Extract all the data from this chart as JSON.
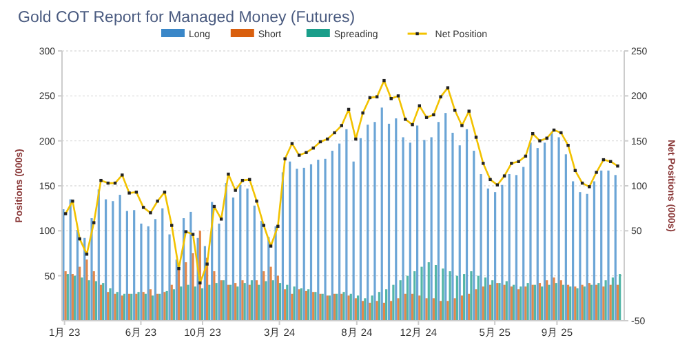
{
  "chart_data": {
    "type": "bar",
    "title": "Gold COT Report for Managed Money (Futures)",
    "ylabel": "Positions (000s)",
    "y2label": "Net Positions (000s)",
    "x": [
      "2023-01-03",
      "2023-01-17",
      "2023-01-31",
      "2023-02-14",
      "2023-02-28",
      "2023-03-14",
      "2023-03-28",
      "2023-04-11",
      "2023-04-25",
      "2023-05-09",
      "2023-05-23",
      "2023-06-06",
      "2023-06-20",
      "2023-07-04",
      "2023-07-18",
      "2023-08-01",
      "2023-08-15",
      "2023-08-29",
      "2023-09-12",
      "2023-09-26",
      "2023-10-10",
      "2023-10-24",
      "2023-11-07",
      "2023-11-21",
      "2023-12-05",
      "2023-12-19",
      "2024-01-02",
      "2024-01-16",
      "2024-01-30",
      "2024-02-13",
      "2024-02-27",
      "2024-03-12",
      "2024-03-26",
      "2024-04-09",
      "2024-04-23",
      "2024-05-07",
      "2024-05-21",
      "2024-06-04",
      "2024-06-18",
      "2024-07-02",
      "2024-07-16",
      "2024-07-30",
      "2024-08-13",
      "2024-08-27",
      "2024-09-10",
      "2024-09-24",
      "2024-10-08",
      "2024-10-22",
      "2024-11-05",
      "2024-11-19",
      "2024-12-03",
      "2024-12-17",
      "2024-12-31",
      "2025-01-14",
      "2025-01-28",
      "2025-02-11",
      "2025-02-25",
      "2025-03-11",
      "2025-03-25",
      "2025-04-08",
      "2025-04-22",
      "2025-05-06",
      "2025-05-20",
      "2025-06-03",
      "2025-06-17",
      "2025-07-01",
      "2025-07-15",
      "2025-07-29",
      "2025-08-12",
      "2025-08-26",
      "2025-09-09",
      "2025-09-23",
      "2025-10-07",
      "2025-10-21",
      "2025-11-04",
      "2025-11-18",
      "2025-12-02",
      "2025-12-16",
      "2025-12-30"
    ],
    "xlim": [
      "2022-12-27",
      "2026-01-12"
    ],
    "xticks": [
      {
        "value": "2023-01-01",
        "label": "1月 23"
      },
      {
        "value": "2023-06-01",
        "label": "6月 23"
      },
      {
        "value": "2023-10-01",
        "label": "10月 23"
      },
      {
        "value": "2024-03-01",
        "label": "3月 24"
      },
      {
        "value": "2024-08-01",
        "label": "8月 24"
      },
      {
        "value": "2024-12-01",
        "label": "12月 24"
      },
      {
        "value": "2025-05-01",
        "label": "5月 25"
      },
      {
        "value": "2025-09-01",
        "label": "9月 25"
      }
    ],
    "ylim": [
      0,
      300
    ],
    "yticks": [
      50,
      100,
      150,
      200,
      250,
      300
    ],
    "y2lim": [
      -50,
      250
    ],
    "y2ticks": [
      -50,
      50,
      100,
      150,
      200,
      250
    ],
    "grid": "y",
    "legend": "top",
    "series": [
      {
        "name": "Long",
        "color": "#3a87c8",
        "values": [
          124,
          135,
          101,
          92,
          114,
          146,
          135,
          133,
          140,
          122,
          123,
          108,
          105,
          113,
          125,
          96,
          68,
          114,
          121,
          92,
          83,
          132,
          108,
          153,
          137,
          151,
          147,
          128,
          111,
          93,
          105,
          165,
          177,
          169,
          170,
          174,
          179,
          180,
          189,
          197,
          213,
          177,
          203,
          218,
          221,
          237,
          219,
          225,
          204,
          198,
          217,
          201,
          204,
          221,
          231,
          209,
          195,
          213,
          189,
          163,
          147,
          143,
          151,
          163,
          162,
          171,
          198,
          192,
          198,
          210,
          204,
          185,
          155,
          143,
          141,
          155,
          167,
          167,
          162
        ]
      },
      {
        "name": "Short",
        "color": "#d95f0e",
        "values": [
          55,
          52,
          60,
          68,
          55,
          40,
          32,
          30,
          28,
          30,
          30,
          32,
          35,
          30,
          32,
          40,
          60,
          65,
          75,
          100,
          70,
          55,
          45,
          40,
          42,
          45,
          40,
          45,
          55,
          60,
          50,
          35,
          30,
          35,
          33,
          32,
          30,
          28,
          30,
          30,
          28,
          25,
          22,
          20,
          22,
          20,
          22,
          25,
          30,
          30,
          28,
          25,
          25,
          22,
          22,
          25,
          28,
          30,
          35,
          38,
          40,
          42,
          40,
          38,
          35,
          38,
          40,
          42,
          45,
          48,
          45,
          40,
          38,
          40,
          42,
          40,
          38,
          40,
          40
        ]
      },
      {
        "name": "Spreading",
        "color": "#1a9e8a",
        "values": [
          52,
          50,
          48,
          45,
          44,
          42,
          36,
          32,
          30,
          30,
          32,
          30,
          28,
          30,
          33,
          35,
          38,
          40,
          38,
          36,
          40,
          42,
          45,
          40,
          38,
          42,
          45,
          40,
          44,
          45,
          42,
          40,
          38,
          36,
          35,
          32,
          30,
          28,
          30,
          32,
          30,
          28,
          25,
          28,
          32,
          35,
          40,
          45,
          50,
          55,
          60,
          65,
          62,
          58,
          55,
          50,
          52,
          55,
          50,
          48,
          45,
          42,
          44,
          40,
          38,
          42,
          40,
          38,
          40,
          42,
          40,
          38,
          36,
          38,
          40,
          42,
          45,
          48,
          52
        ]
      },
      {
        "name": "Net Position",
        "type": "line",
        "axis": "y2",
        "color": "#f2c200",
        "marker": "square",
        "values": [
          69,
          83,
          41,
          24,
          59,
          106,
          103,
          103,
          112,
          92,
          93,
          76,
          70,
          83,
          93,
          56,
          8,
          49,
          46,
          -8,
          13,
          77,
          63,
          113,
          95,
          106,
          107,
          83,
          56,
          33,
          55,
          130,
          147,
          134,
          137,
          142,
          149,
          152,
          159,
          167,
          185,
          152,
          181,
          198,
          199,
          217,
          197,
          200,
          174,
          168,
          189,
          176,
          179,
          199,
          209,
          184,
          167,
          183,
          154,
          125,
          107,
          101,
          111,
          125,
          127,
          133,
          158,
          150,
          153,
          162,
          159,
          145,
          117,
          103,
          99,
          115,
          129,
          127,
          122
        ]
      }
    ]
  }
}
